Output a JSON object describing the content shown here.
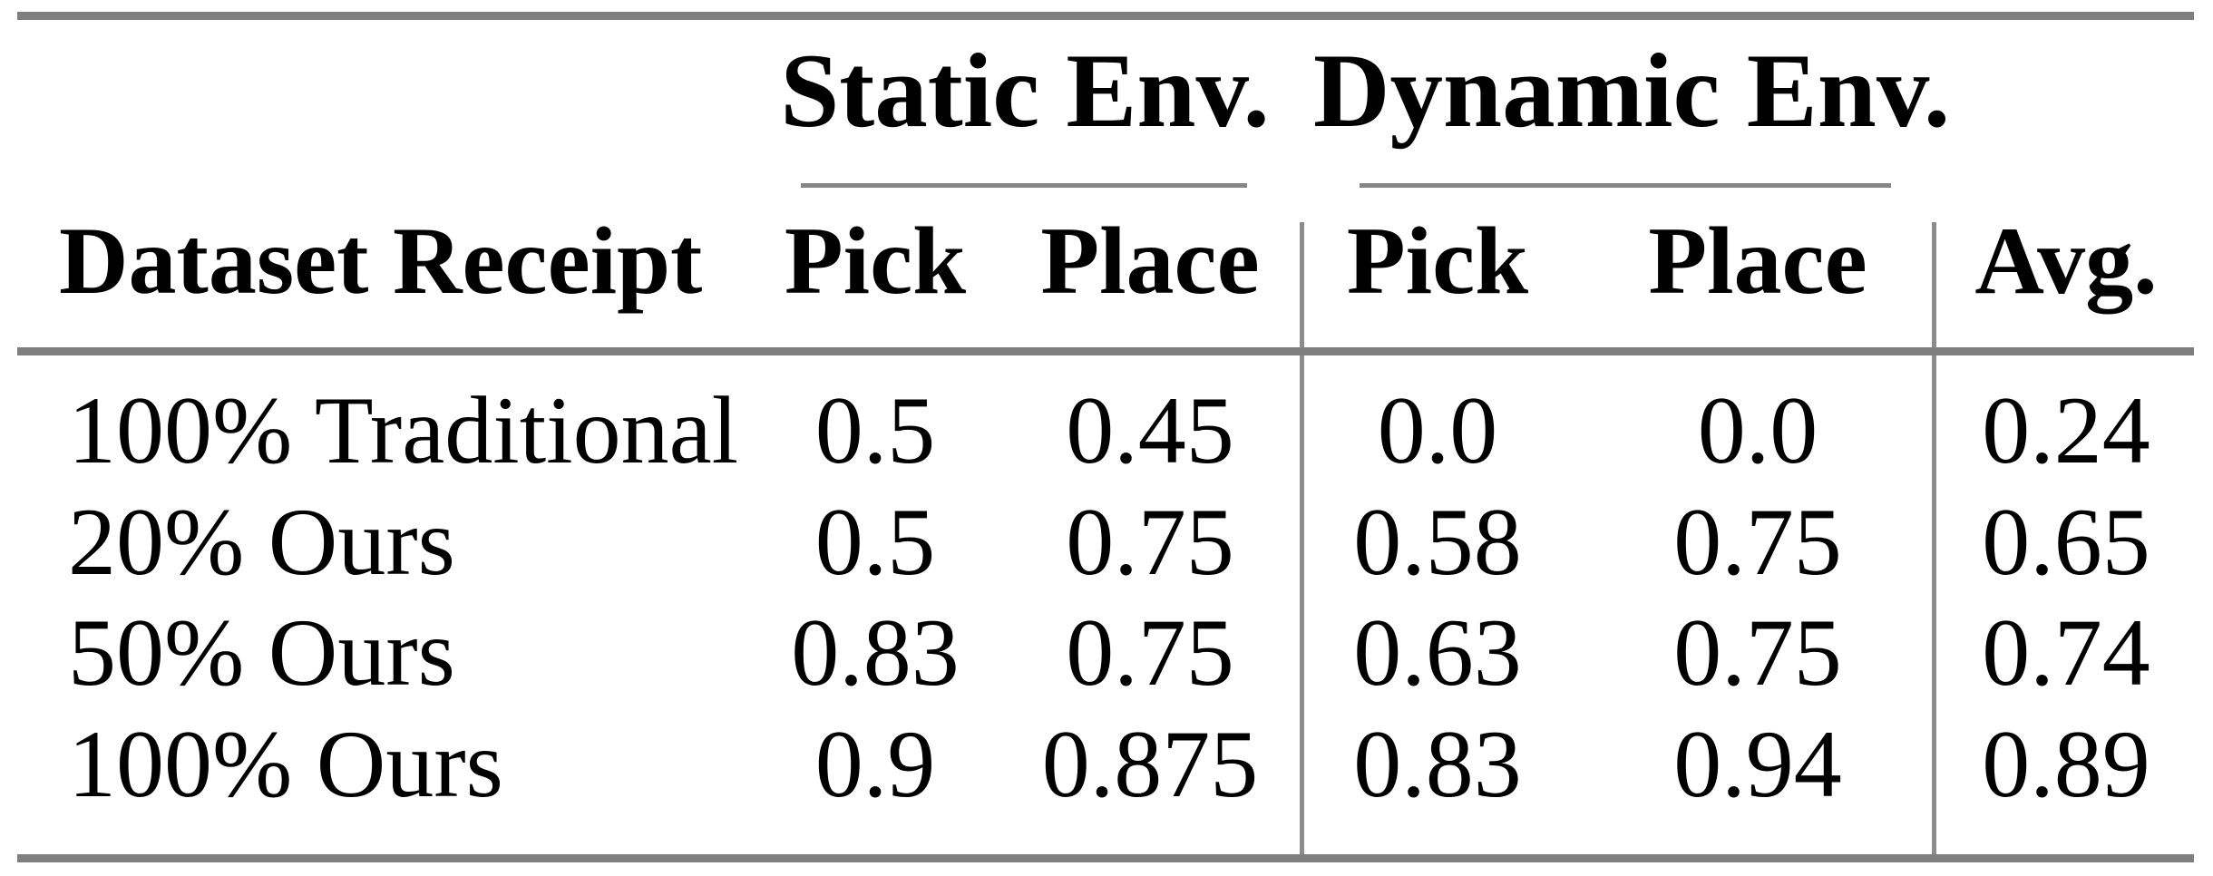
{
  "table": {
    "groups": {
      "static": "Static Env.",
      "dynamic": "Dynamic Env."
    },
    "columns": {
      "row_header": "Dataset Receipt",
      "static_pick": "Pick",
      "static_place": "Place",
      "dynamic_pick": "Pick",
      "dynamic_place": "Place",
      "avg": "Avg."
    },
    "rows": [
      {
        "label": "100% Traditional",
        "static_pick": "0.5",
        "static_place": "0.45",
        "dynamic_pick": "0.0",
        "dynamic_place": "0.0",
        "avg": "0.24"
      },
      {
        "label": "20% Ours",
        "static_pick": "0.5",
        "static_place": "0.75",
        "dynamic_pick": "0.58",
        "dynamic_place": "0.75",
        "avg": "0.65"
      },
      {
        "label": "50% Ours",
        "static_pick": "0.83",
        "static_place": "0.75",
        "dynamic_pick": "0.63",
        "dynamic_place": "0.75",
        "avg": "0.74"
      },
      {
        "label": "100% Ours",
        "static_pick": "0.9",
        "static_place": "0.875",
        "dynamic_pick": "0.83",
        "dynamic_place": "0.94",
        "avg": "0.89"
      }
    ]
  },
  "colors": {
    "background": "#ffffff",
    "text": "#000000",
    "thick_rule_gray": "#7f7f7f",
    "thin_rule_gray": "#868686",
    "vertical_rule_gray": "#8c8c8c"
  },
  "chart_data": {
    "type": "table",
    "title": "",
    "column_groups": [
      {
        "label": "Static Env.",
        "columns": [
          "Pick",
          "Place"
        ]
      },
      {
        "label": "Dynamic Env.",
        "columns": [
          "Pick",
          "Place"
        ]
      }
    ],
    "columns": [
      "Dataset Receipt",
      "Static Env. Pick",
      "Static Env. Place",
      "Dynamic Env. Pick",
      "Dynamic Env. Place",
      "Avg."
    ],
    "rows": [
      [
        "100% Traditional",
        0.5,
        0.45,
        0.0,
        0.0,
        0.24
      ],
      [
        "20% Ours",
        0.5,
        0.75,
        0.58,
        0.75,
        0.65
      ],
      [
        "50% Ours",
        0.83,
        0.75,
        0.63,
        0.75,
        0.74
      ],
      [
        "100% Ours",
        0.9,
        0.875,
        0.83,
        0.94,
        0.89
      ]
    ]
  }
}
